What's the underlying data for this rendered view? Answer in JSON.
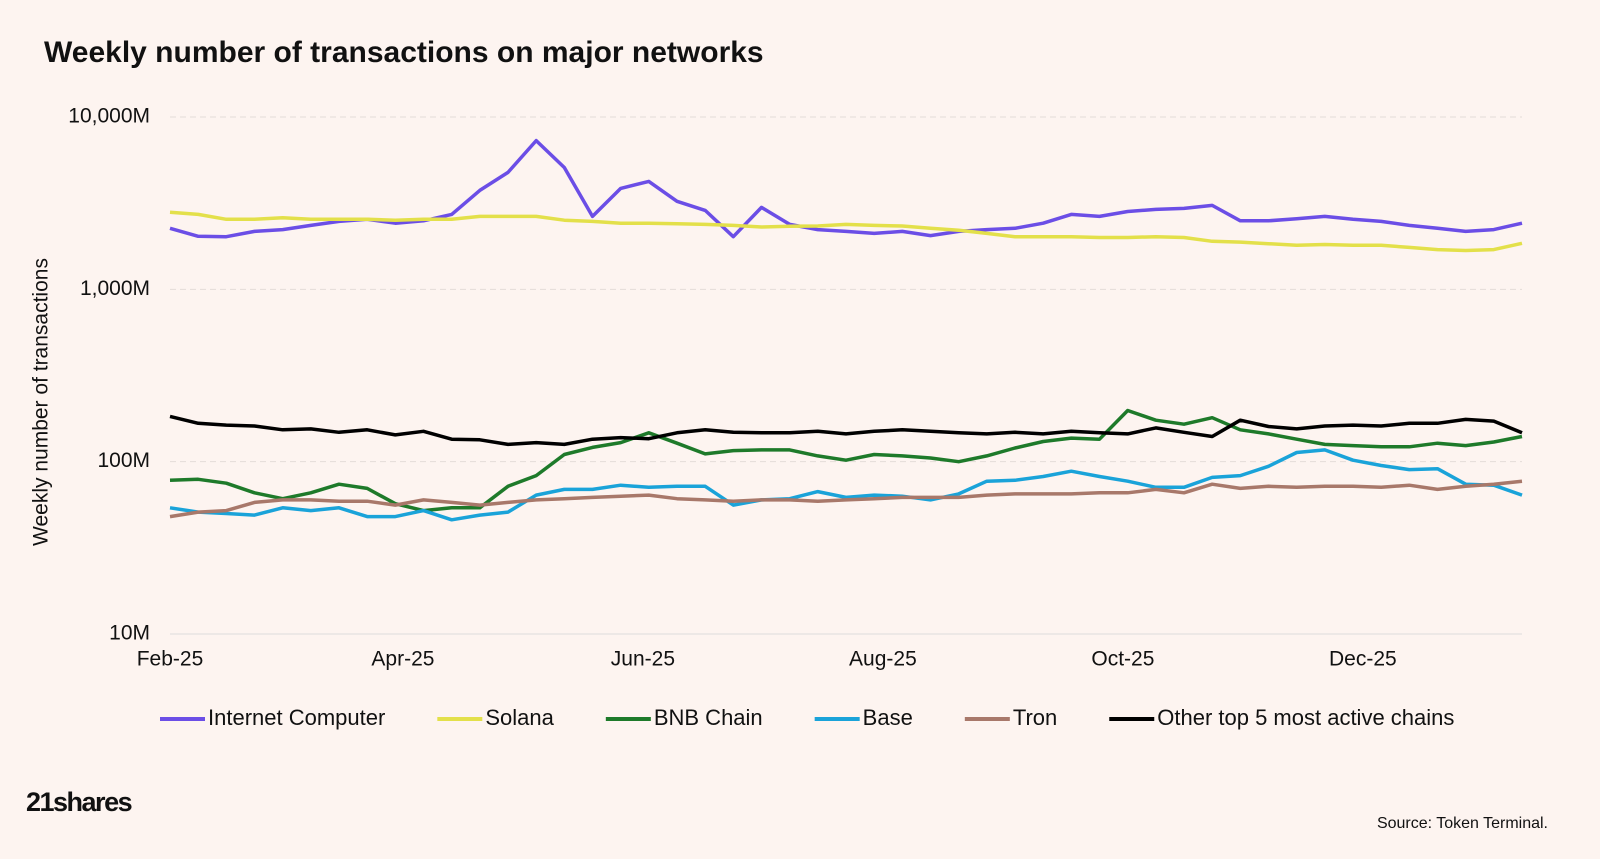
{
  "chart_data": {
    "type": "line",
    "title": "Weekly number of transactions on major networks",
    "y_label": "Weekly number of transactions",
    "source": "Source: Token Terminal.",
    "brand": "21shares",
    "log_y": true,
    "grid": true,
    "ylim": [
      10,
      10000
    ],
    "yticks": [
      {
        "value": 10,
        "label": "10M"
      },
      {
        "value": 100,
        "label": "100M"
      },
      {
        "value": 1000,
        "label": "1,000M"
      },
      {
        "value": 10000,
        "label": "10,000M"
      }
    ],
    "xlim": [
      0,
      48
    ],
    "xticks": [
      {
        "value": 0,
        "label": "Feb-25"
      },
      {
        "value": 8.27,
        "label": "Apr-25"
      },
      {
        "value": 16.79,
        "label": "Jun-25"
      },
      {
        "value": 25.31,
        "label": "Aug-25"
      },
      {
        "value": 33.83,
        "label": "Oct-25"
      },
      {
        "value": 42.35,
        "label": "Dec-25"
      }
    ],
    "categories": [
      null,
      null,
      null,
      null,
      null,
      null,
      null,
      null,
      null,
      null,
      null,
      null,
      null,
      null,
      null,
      null,
      null,
      null,
      null,
      null,
      null,
      null,
      null,
      null,
      null,
      null,
      null,
      null,
      null,
      null,
      null,
      null,
      null,
      null,
      null,
      null,
      null,
      null,
      null,
      null,
      null,
      null,
      null,
      null,
      null,
      null,
      null,
      null,
      null
    ],
    "series": [
      {
        "name": "Internet Computer",
        "color": "#6b4ee6",
        "values": [
          2260,
          2030,
          2020,
          2170,
          2220,
          2350,
          2480,
          2550,
          2420,
          2500,
          2720,
          3750,
          4770,
          7300,
          5090,
          2650,
          3850,
          4230,
          3240,
          2870,
          2020,
          2990,
          2380,
          2220,
          2170,
          2110,
          2170,
          2050,
          2170,
          2220,
          2260,
          2420,
          2720,
          2650,
          2830,
          2910,
          2950,
          3070,
          2500,
          2500,
          2570,
          2650,
          2550,
          2480,
          2350,
          2260,
          2170,
          2220,
          2420
        ]
      },
      {
        "name": "Solana",
        "color": "#e3e04a",
        "values": [
          2800,
          2720,
          2550,
          2550,
          2600,
          2550,
          2550,
          2550,
          2520,
          2550,
          2550,
          2650,
          2650,
          2650,
          2520,
          2480,
          2420,
          2420,
          2400,
          2380,
          2350,
          2300,
          2320,
          2330,
          2380,
          2350,
          2330,
          2260,
          2200,
          2110,
          2020,
          2020,
          2020,
          2000,
          2000,
          2020,
          2000,
          1900,
          1880,
          1840,
          1800,
          1820,
          1800,
          1800,
          1750,
          1700,
          1680,
          1700,
          1850
        ]
      },
      {
        "name": "BNB Chain",
        "color": "#1e7a2a",
        "values": [
          78,
          79,
          75,
          66,
          61,
          66,
          74,
          70,
          57,
          52,
          54,
          54,
          72,
          83,
          110,
          121,
          129,
          147,
          128,
          111,
          116,
          117,
          117,
          108,
          102,
          110,
          108,
          105,
          100,
          108,
          120,
          131,
          137,
          135,
          198,
          174,
          165,
          180,
          153,
          145,
          135,
          126,
          124,
          122,
          122,
          128,
          124,
          130,
          140
        ]
      },
      {
        "name": "Base",
        "color": "#1aa3d9",
        "values": [
          54,
          51,
          50,
          49,
          54,
          52,
          54,
          48,
          48,
          52,
          46,
          49,
          51,
          64,
          69,
          69,
          73,
          71,
          72,
          72,
          56,
          60,
          61,
          67,
          62,
          64,
          63,
          60,
          65,
          77,
          78,
          82,
          88,
          82,
          77,
          71,
          71,
          81,
          83,
          94,
          113,
          117,
          102,
          95,
          90,
          91,
          74,
          73,
          64
        ]
      },
      {
        "name": "Tron",
        "color": "#a8786a",
        "values": [
          48,
          51,
          52,
          58,
          60,
          60,
          59,
          59,
          56,
          60,
          58,
          56,
          58,
          60,
          61,
          62,
          63,
          64,
          61,
          60,
          59,
          60,
          60,
          59,
          60,
          61,
          62,
          62,
          62,
          64,
          65,
          65,
          65,
          66,
          66,
          69,
          66,
          74,
          70,
          72,
          71,
          72,
          72,
          71,
          73,
          69,
          72,
          74,
          77
        ]
      },
      {
        "name": "Other top 5 most active chains",
        "color": "#000000",
        "values": [
          183,
          167,
          163,
          161,
          153,
          155,
          148,
          153,
          143,
          150,
          135,
          134,
          126,
          129,
          126,
          135,
          138,
          136,
          147,
          153,
          148,
          147,
          147,
          150,
          145,
          150,
          153,
          150,
          147,
          145,
          148,
          145,
          150,
          147,
          145,
          157,
          148,
          140,
          174,
          160,
          155,
          161,
          163,
          161,
          167,
          167,
          176,
          172,
          147
        ]
      }
    ]
  }
}
